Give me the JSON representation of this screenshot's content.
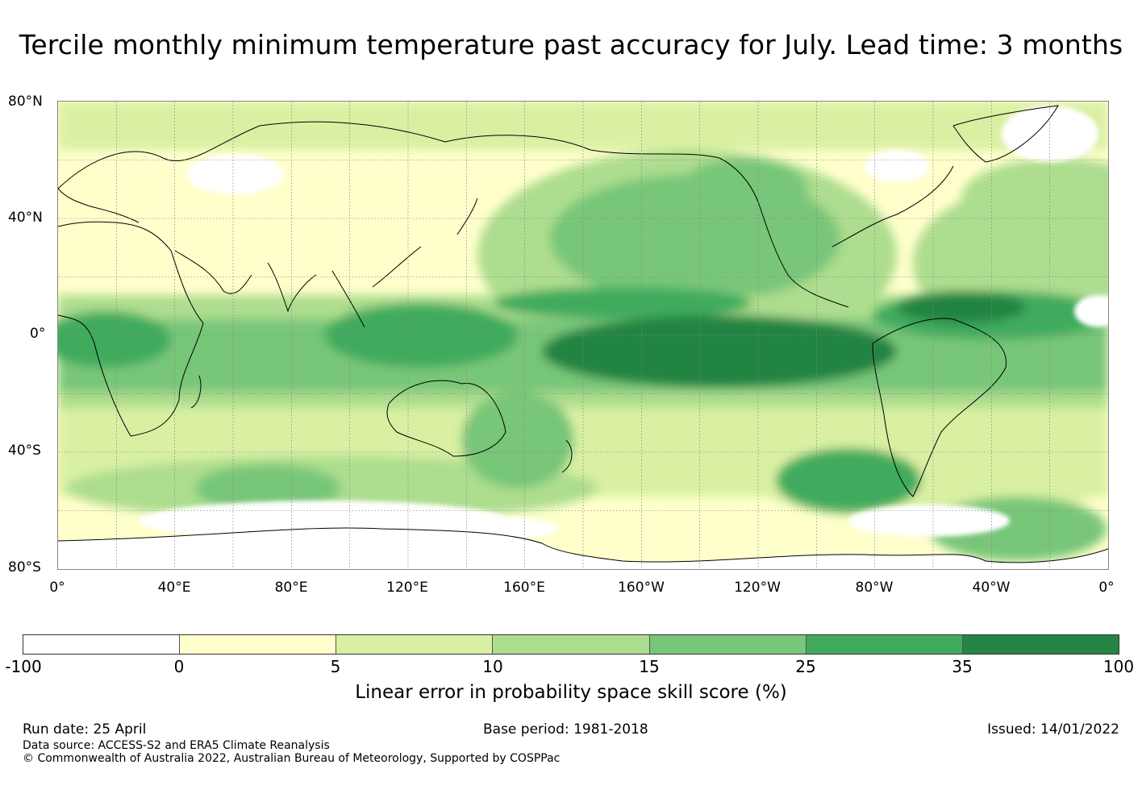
{
  "title": "Tercile monthly minimum temperature past accuracy for July. Lead time: 3 months",
  "map": {
    "lat_labels": [
      "80°N",
      "40°N",
      "0°",
      "40°S",
      "80°S"
    ],
    "lon_labels": [
      "0°",
      "40°E",
      "80°E",
      "120°E",
      "160°E",
      "160°W",
      "120°W",
      "80°W",
      "40°W",
      "0°"
    ],
    "lat_range": [
      -80,
      80
    ],
    "lon_range": [
      0,
      360
    ],
    "gridlines": true,
    "projection": "equirectangular"
  },
  "colorbar": {
    "label": "Linear error in probability space skill score (%)",
    "ticks": [
      "-100",
      "0",
      "5",
      "10",
      "15",
      "25",
      "35",
      "100"
    ],
    "colors": [
      "#ffffff",
      "#ffffcc",
      "#d9f0a3",
      "#addd8e",
      "#78c679",
      "#41ab5d",
      "#238443"
    ]
  },
  "footer": {
    "run_date": "Run date: 25 April",
    "base_period": "Base period: 1981-2018",
    "issued": "Issued: 14/01/2022",
    "data_source": "Data source: ACCESS-S2 and ERA5 Climate Reanalysis",
    "copyright": "© Commonwealth of Australia 2022, Australian Bureau of Meteorology, Supported by COSPPac"
  }
}
